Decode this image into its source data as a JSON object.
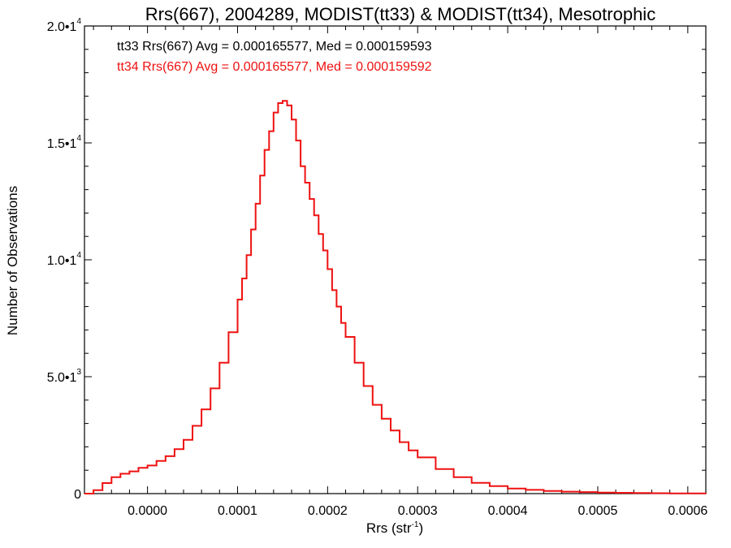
{
  "chart_data": {
    "type": "line",
    "title": "Rrs(667), 2004289, MODIST(tt33) & MODIST(tt34), Mesotrophic",
    "xlabel": {
      "base": "Rrs (str",
      "sup": "-1",
      "end": ")"
    },
    "ylabel": "Number of Observations",
    "xlim": [
      -7e-05,
      0.00062
    ],
    "ylim": [
      0,
      20000
    ],
    "x_ticks": [
      {
        "value": 0.0,
        "label": "0.0000"
      },
      {
        "value": 0.0001,
        "label": "0.0001"
      },
      {
        "value": 0.0002,
        "label": "0.0002"
      },
      {
        "value": 0.0003,
        "label": "0.0003"
      },
      {
        "value": 0.0004,
        "label": "0.0004"
      },
      {
        "value": 0.0005,
        "label": "0.0005"
      },
      {
        "value": 0.0006,
        "label": "0.0006"
      }
    ],
    "y_ticks": [
      {
        "value": 0,
        "base": "0",
        "sup": ""
      },
      {
        "value": 5000,
        "base": "5.0•1",
        "sup": "3"
      },
      {
        "value": 10000,
        "base": "1.0•1",
        "sup": "4"
      },
      {
        "value": 15000,
        "base": "1.5•1",
        "sup": "4"
      },
      {
        "value": 20000,
        "base": "2.0•1",
        "sup": "4"
      }
    ],
    "annotations": [
      {
        "text": "tt33 Rrs(667) Avg = 0.000165577, Med = 0.000159593",
        "color": "#000000"
      },
      {
        "text": "tt34 Rrs(667) Avg = 0.000165577, Med = 0.000159592",
        "color": "#ee1111"
      }
    ],
    "series": [
      {
        "color": "#ee1111",
        "x": [
          -7e-05,
          -6e-05,
          -5e-05,
          -4e-05,
          -3e-05,
          -2e-05,
          -1e-05,
          0.0,
          1e-05,
          2e-05,
          3e-05,
          4e-05,
          5e-05,
          6e-05,
          7e-05,
          8e-05,
          9e-05,
          0.0001,
          0.000105,
          0.00011,
          0.000115,
          0.00012,
          0.000125,
          0.00013,
          0.000135,
          0.00014,
          0.000145,
          0.00015,
          0.000155,
          0.00016,
          0.000165,
          0.00017,
          0.000175,
          0.00018,
          0.000185,
          0.00019,
          0.000195,
          0.0002,
          0.000205,
          0.00021,
          0.000215,
          0.00022,
          0.00023,
          0.00024,
          0.00025,
          0.00026,
          0.00027,
          0.00028,
          0.00029,
          0.0003,
          0.00032,
          0.00034,
          0.00036,
          0.00038,
          0.0004,
          0.00042,
          0.00044,
          0.00046,
          0.00048,
          0.0005,
          0.00052,
          0.00054,
          0.00056,
          0.00058,
          0.0006,
          0.00062
        ],
        "values": [
          0,
          150,
          450,
          700,
          850,
          950,
          1100,
          1200,
          1400,
          1600,
          1900,
          2300,
          2900,
          3600,
          4500,
          5600,
          6900,
          8300,
          9200,
          10200,
          11300,
          12400,
          13600,
          14700,
          15500,
          16300,
          16700,
          16800,
          16600,
          16000,
          15100,
          14000,
          13300,
          12600,
          11900,
          11100,
          10400,
          9600,
          8700,
          8000,
          7300,
          6700,
          5600,
          4600,
          3800,
          3200,
          2700,
          2200,
          1850,
          1550,
          1050,
          700,
          460,
          320,
          220,
          160,
          115,
          85,
          65,
          45,
          35,
          25,
          18,
          12,
          8,
          5
        ]
      }
    ]
  }
}
